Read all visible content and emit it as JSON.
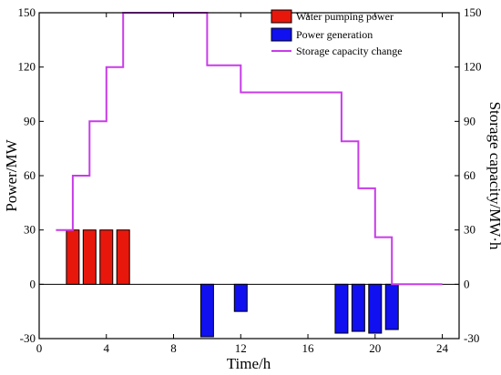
{
  "chart_data": {
    "type": "bar+line",
    "xlabel": "Time/h",
    "ylabel_left": "Power/MW",
    "ylabel_right": "Storage capacity/MW·h",
    "xlim": [
      0,
      25
    ],
    "ylim_left": [
      -30,
      150
    ],
    "ylim_right": [
      -30,
      150
    ],
    "xticks": [
      0,
      4,
      8,
      12,
      16,
      20,
      24
    ],
    "yticks": [
      -30,
      0,
      30,
      60,
      90,
      120,
      150
    ],
    "legend_position": "top-right",
    "grid": false,
    "series": [
      {
        "name": "Water pumping power",
        "type": "bar",
        "color": "#e8170c",
        "points": [
          {
            "x": 2,
            "y": 30
          },
          {
            "x": 3,
            "y": 30
          },
          {
            "x": 4,
            "y": 30
          },
          {
            "x": 5,
            "y": 30
          }
        ]
      },
      {
        "name": "Power generation",
        "type": "bar",
        "color": "#1010f0",
        "points": [
          {
            "x": 10,
            "y": -29
          },
          {
            "x": 12,
            "y": -15
          },
          {
            "x": 18,
            "y": -27
          },
          {
            "x": 19,
            "y": -26
          },
          {
            "x": 20,
            "y": -27
          },
          {
            "x": 21,
            "y": -25
          }
        ]
      },
      {
        "name": "Storage capacity change",
        "type": "step-line",
        "color": "#c83ce8",
        "points": [
          {
            "x": 1,
            "y": 30
          },
          {
            "x": 2,
            "y": 30
          },
          {
            "x": 2,
            "y": 60
          },
          {
            "x": 3,
            "y": 60
          },
          {
            "x": 3,
            "y": 90
          },
          {
            "x": 4,
            "y": 90
          },
          {
            "x": 4,
            "y": 120
          },
          {
            "x": 5,
            "y": 120
          },
          {
            "x": 5,
            "y": 150
          },
          {
            "x": 10,
            "y": 150
          },
          {
            "x": 10,
            "y": 121
          },
          {
            "x": 12,
            "y": 121
          },
          {
            "x": 12,
            "y": 106
          },
          {
            "x": 18,
            "y": 106
          },
          {
            "x": 18,
            "y": 79
          },
          {
            "x": 19,
            "y": 79
          },
          {
            "x": 19,
            "y": 53
          },
          {
            "x": 20,
            "y": 53
          },
          {
            "x": 20,
            "y": 26
          },
          {
            "x": 21,
            "y": 26
          },
          {
            "x": 21,
            "y": 0
          },
          {
            "x": 24,
            "y": 0
          }
        ]
      }
    ]
  }
}
